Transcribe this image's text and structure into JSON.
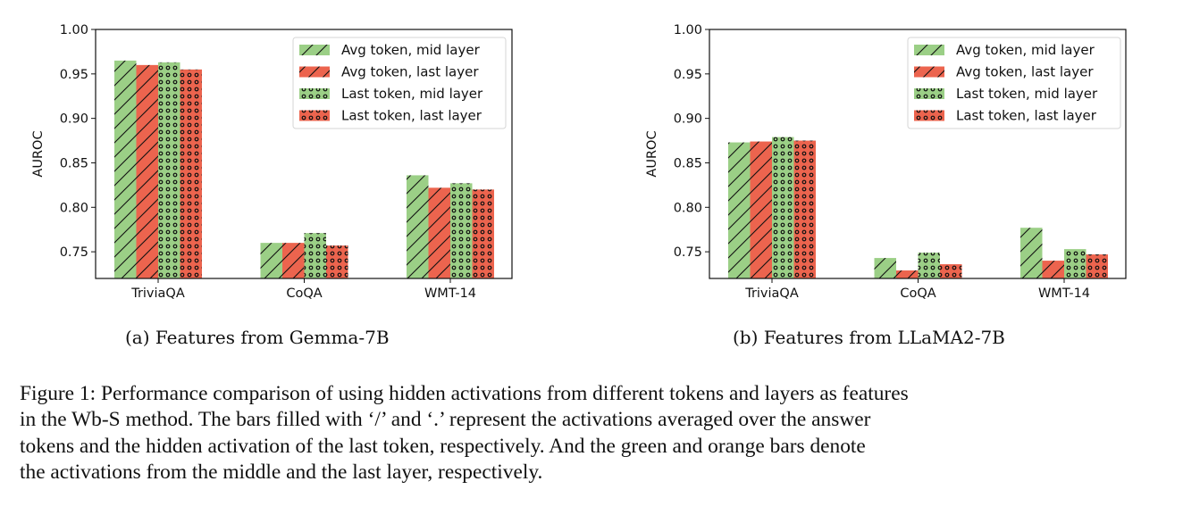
{
  "colors": {
    "mid_layer": "#9bcf86",
    "last_layer": "#ec644e"
  },
  "chart_data": [
    {
      "type": "bar",
      "title": "",
      "subcaption": "(a) Features from Gemma-7B",
      "xlabel": "",
      "ylabel": "AUROC",
      "ylim": [
        0.72,
        1.0
      ],
      "yticks": [
        "0.75",
        "0.80",
        "0.85",
        "0.90",
        "0.95",
        "1.00"
      ],
      "categories": [
        "TriviaQA",
        "CoQA",
        "WMT-14"
      ],
      "legend_position": "top-right",
      "series": [
        {
          "name": "Avg token, mid layer",
          "color_key": "mid_layer",
          "hatch": "slash",
          "values": [
            0.965,
            0.76,
            0.836
          ]
        },
        {
          "name": "Avg token, last layer",
          "color_key": "last_layer",
          "hatch": "slash",
          "values": [
            0.96,
            0.76,
            0.822
          ]
        },
        {
          "name": "Last token, mid layer",
          "color_key": "mid_layer",
          "hatch": "dots",
          "values": [
            0.963,
            0.771,
            0.827
          ]
        },
        {
          "name": "Last token, last layer",
          "color_key": "last_layer",
          "hatch": "dots",
          "values": [
            0.955,
            0.757,
            0.82
          ]
        }
      ],
      "grid": false
    },
    {
      "type": "bar",
      "title": "",
      "subcaption": "(b) Features from LLaMA2-7B",
      "xlabel": "",
      "ylabel": "AUROC",
      "ylim": [
        0.72,
        1.0
      ],
      "yticks": [
        "0.75",
        "0.80",
        "0.85",
        "0.90",
        "0.95",
        "1.00"
      ],
      "categories": [
        "TriviaQA",
        "CoQA",
        "WMT-14"
      ],
      "legend_position": "top-right",
      "series": [
        {
          "name": "Avg token, mid layer",
          "color_key": "mid_layer",
          "hatch": "slash",
          "values": [
            0.873,
            0.743,
            0.777
          ]
        },
        {
          "name": "Avg token, last layer",
          "color_key": "last_layer",
          "hatch": "slash",
          "values": [
            0.874,
            0.729,
            0.74
          ]
        },
        {
          "name": "Last token, mid layer",
          "color_key": "mid_layer",
          "hatch": "dots",
          "values": [
            0.879,
            0.749,
            0.753
          ]
        },
        {
          "name": "Last token, last layer",
          "color_key": "last_layer",
          "hatch": "dots",
          "values": [
            0.875,
            0.736,
            0.747
          ]
        }
      ],
      "grid": false
    }
  ],
  "figure_caption": {
    "lines": [
      "Figure 1: Performance comparison of using hidden activations from different tokens and layers as features",
      "in the Wb-S method. The bars filled with ‘/’ and ‘.’ represent the activations averaged over the answer",
      "tokens and the hidden activation of the last token, respectively. And the green and orange bars denote",
      "the activations from the middle and the last layer, respectively."
    ]
  }
}
